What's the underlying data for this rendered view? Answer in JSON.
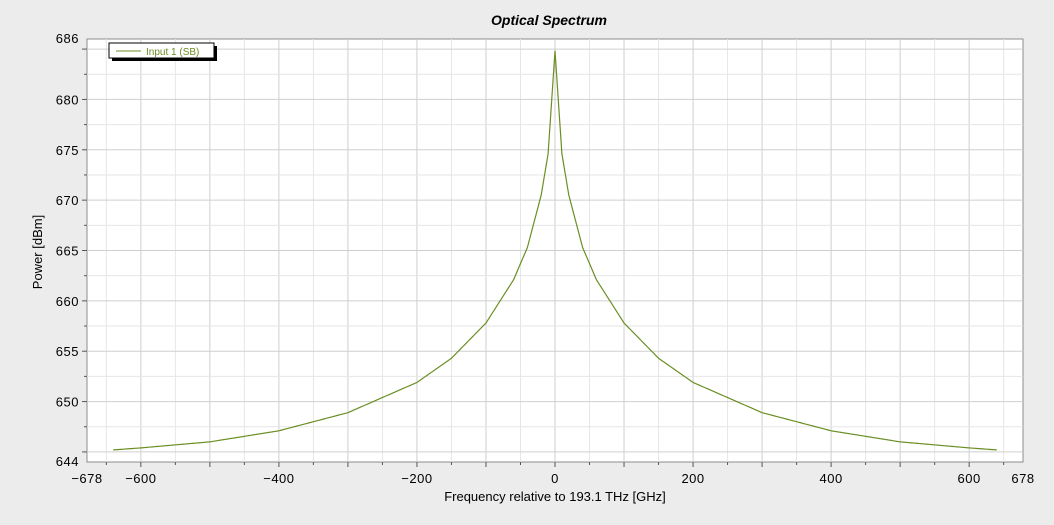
{
  "chart_data": {
    "type": "line",
    "title": "Optical Spectrum",
    "xlabel": "Frequency relative to 193.1 THz [GHz]",
    "ylabel": "Power [dBm]",
    "xlim": [
      -678,
      678
    ],
    "ylim": [
      644,
      686
    ],
    "x_ticks": [
      -678,
      -600,
      -400,
      -200,
      0,
      200,
      400,
      600,
      678
    ],
    "y_ticks": [
      644,
      650,
      655,
      660,
      665,
      670,
      675,
      680,
      686
    ],
    "grid": true,
    "legend_position": "top-left",
    "series": [
      {
        "name": "Input 1  (SB)",
        "color": "#6b8e23",
        "x": [
          -640,
          -600,
          -500,
          -400,
          -300,
          -200,
          -150,
          -100,
          -60,
          -40,
          -20,
          -10,
          0,
          10,
          20,
          40,
          60,
          100,
          150,
          200,
          300,
          400,
          500,
          600,
          640
        ],
        "values": [
          645.2,
          645.4,
          646.0,
          647.1,
          648.9,
          651.9,
          654.3,
          657.8,
          662.1,
          665.3,
          670.5,
          674.6,
          684.8,
          674.6,
          670.5,
          665.3,
          662.1,
          657.8,
          654.3,
          651.9,
          648.9,
          647.1,
          646.0,
          645.4,
          645.2
        ]
      }
    ]
  }
}
